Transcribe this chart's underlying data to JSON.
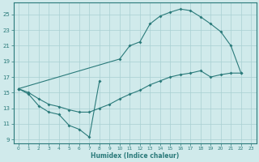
{
  "background_color": "#d0eaeb",
  "grid_color": "#a8d0d2",
  "line_color": "#2a7a7a",
  "line1_x": [
    0,
    1,
    2,
    3,
    4,
    5,
    6,
    7,
    8
  ],
  "line1_y": [
    15.5,
    14.8,
    13.3,
    12.5,
    12.2,
    10.8,
    10.3,
    9.3,
    16.5
  ],
  "line2_x": [
    0,
    10,
    11,
    12,
    13,
    14,
    15,
    16,
    17,
    18,
    19,
    20,
    21,
    22
  ],
  "line2_y": [
    15.5,
    19.3,
    21.0,
    21.5,
    23.8,
    24.8,
    25.3,
    25.7,
    25.5,
    24.7,
    23.8,
    22.8,
    21.0,
    17.5
  ],
  "line3_x": [
    0,
    1,
    2,
    3,
    4,
    5,
    6,
    7,
    8,
    9,
    10,
    11,
    12,
    13,
    14,
    15,
    16,
    17,
    18,
    19,
    20,
    21,
    22
  ],
  "line3_y": [
    15.5,
    15.0,
    14.2,
    13.5,
    13.2,
    12.8,
    12.5,
    12.5,
    13.0,
    13.5,
    14.2,
    14.8,
    15.3,
    16.0,
    16.5,
    17.0,
    17.3,
    17.5,
    17.8,
    17.0,
    17.3,
    17.5,
    17.5
  ],
  "xlim": [
    -0.5,
    23.5
  ],
  "ylim": [
    8.5,
    26.5
  ],
  "yticks": [
    9,
    11,
    13,
    15,
    17,
    19,
    21,
    23,
    25
  ],
  "xticks": [
    0,
    1,
    2,
    3,
    4,
    5,
    6,
    7,
    8,
    9,
    10,
    11,
    12,
    13,
    14,
    15,
    16,
    17,
    18,
    19,
    20,
    21,
    22,
    23
  ],
  "xlabel": "Humidex (Indice chaleur)"
}
